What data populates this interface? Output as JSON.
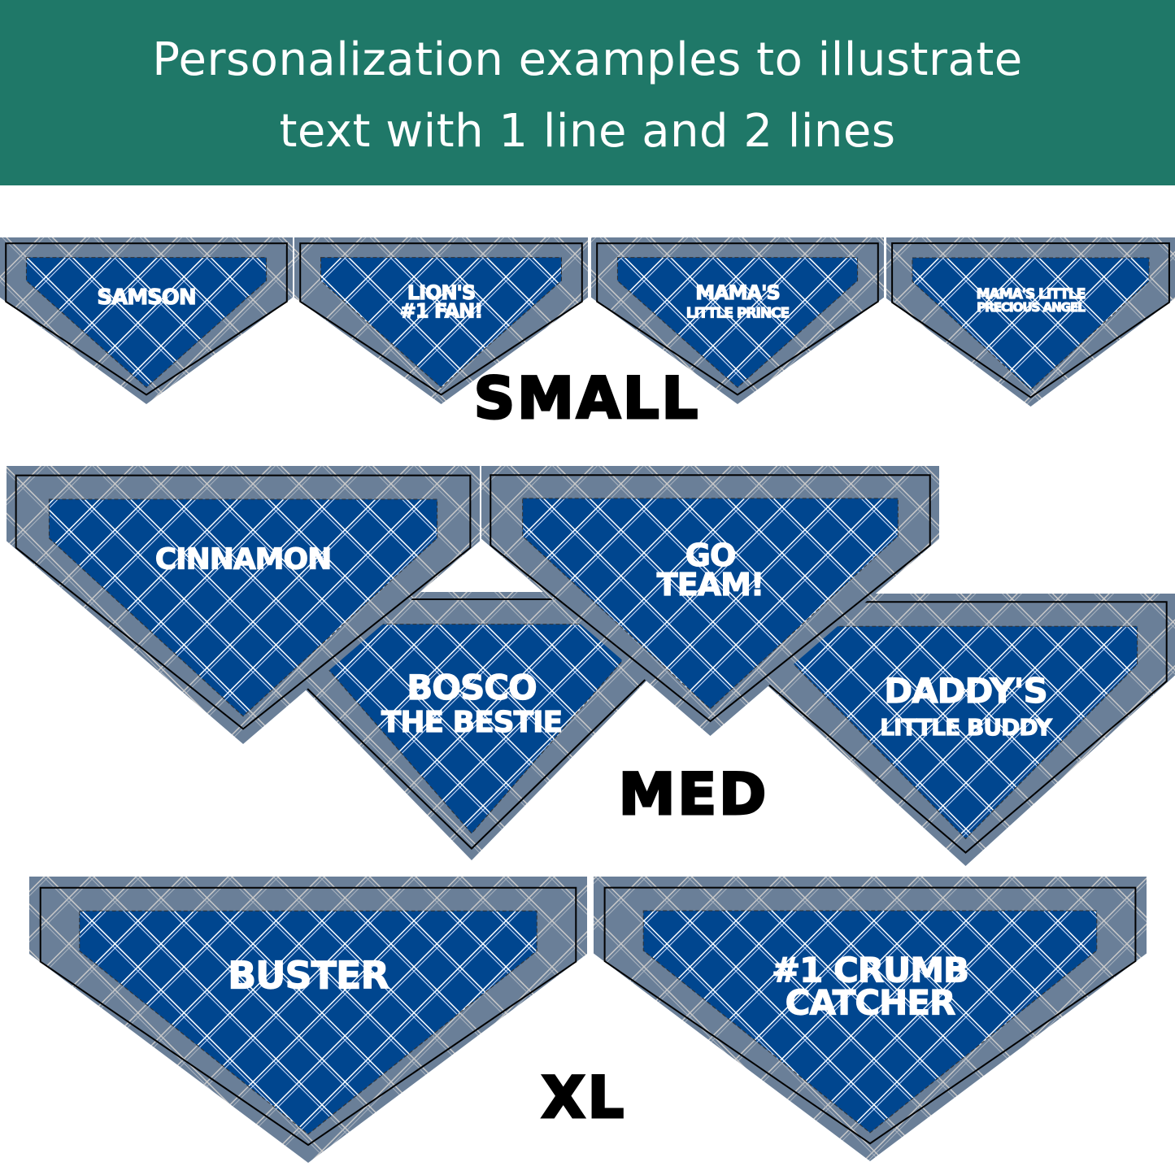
{
  "header": {
    "title_line1": "Personalization examples to illustrate",
    "title_line2": "text with 1 line and 2 lines",
    "background_color": "#1f7868"
  },
  "colors": {
    "bandana_blue": "#00468f",
    "bandana_border": "#6a7f98",
    "plaid_line": "#ffffff"
  },
  "sizes": [
    {
      "label": "SMALL",
      "examples": [
        {
          "line1": "SAMSON",
          "line2": ""
        },
        {
          "line1": "LION'S",
          "line2": "#1 FAN!"
        },
        {
          "line1": "MAMA'S",
          "line2": "LITTLE PRINCE"
        },
        {
          "line1": "MAMA'S LITTLE",
          "line2": "PRECIOUS ANGEL"
        }
      ]
    },
    {
      "label": "MED",
      "examples": [
        {
          "line1": "CINNAMON",
          "line2": ""
        },
        {
          "line1": "BOSCO",
          "line2": "THE BESTIE"
        },
        {
          "line1": "GO",
          "line2": "TEAM!"
        },
        {
          "line1": "DADDY'S",
          "line2": "LITTLE BUDDY"
        }
      ]
    },
    {
      "label": "XL",
      "examples": [
        {
          "line1": "BUSTER",
          "line2": ""
        },
        {
          "line1": "#1 CRUMB",
          "line2": "CATCHER"
        }
      ]
    }
  ]
}
